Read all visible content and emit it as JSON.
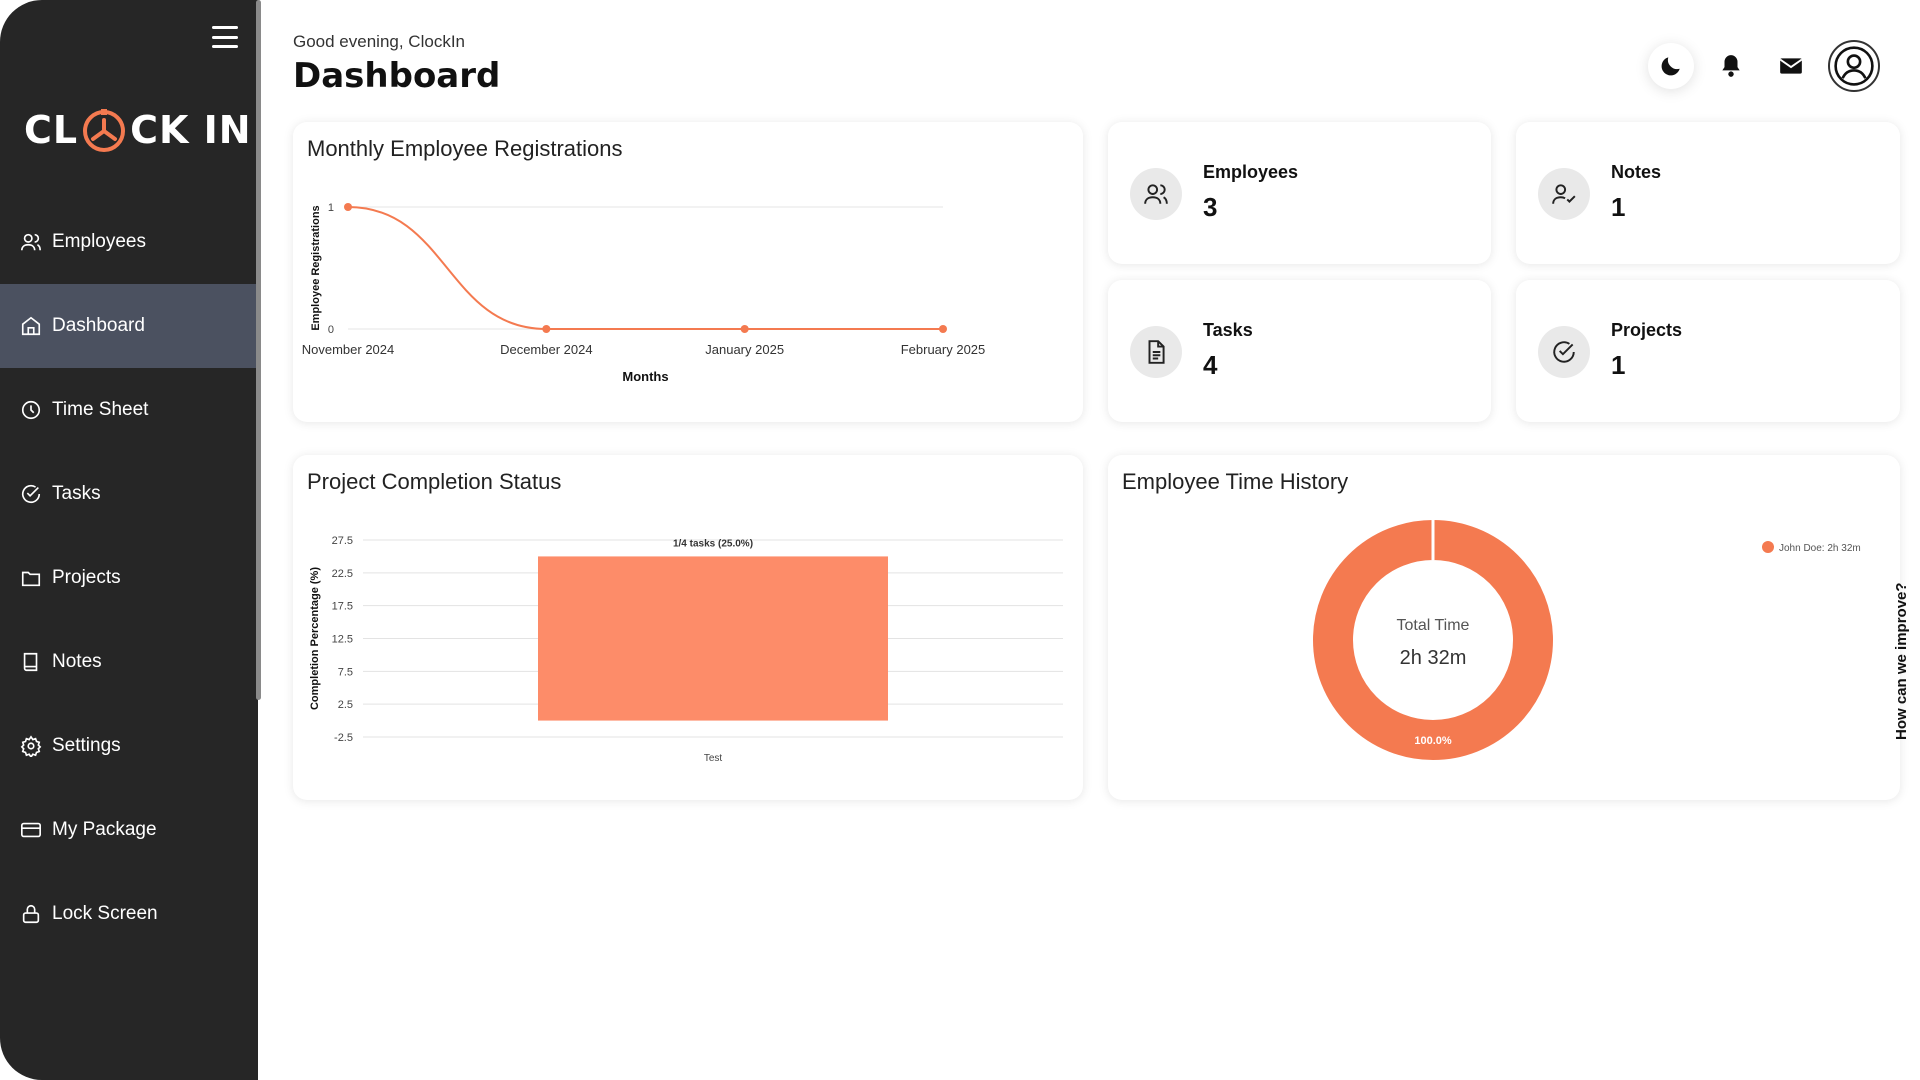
{
  "app": {
    "logo_left": "CL",
    "logo_right": "CK IN"
  },
  "header": {
    "greeting": "Good evening, ClockIn",
    "title": "Dashboard"
  },
  "sidebar": {
    "items": [
      {
        "label": "Employees",
        "icon": "users-icon"
      },
      {
        "label": "Dashboard",
        "icon": "home-icon",
        "active": true
      },
      {
        "label": "Time Sheet",
        "icon": "clock-icon"
      },
      {
        "label": "Tasks",
        "icon": "check-circle-icon"
      },
      {
        "label": "Projects",
        "icon": "folder-icon"
      },
      {
        "label": "Notes",
        "icon": "book-icon"
      },
      {
        "label": "Settings",
        "icon": "gear-icon"
      },
      {
        "label": "My Package",
        "icon": "card-icon"
      },
      {
        "label": "Lock Screen",
        "icon": "lock-icon"
      }
    ]
  },
  "stats": {
    "employees": {
      "label": "Employees",
      "value": "3"
    },
    "notes": {
      "label": "Notes",
      "value": "1"
    },
    "tasks": {
      "label": "Tasks",
      "value": "4"
    },
    "projects": {
      "label": "Projects",
      "value": "1"
    }
  },
  "colors": {
    "accent": "#f47a50",
    "bar": "#fd8c69",
    "sidebar": "#262626",
    "active": "#4b5160"
  },
  "feedback": {
    "label": "How can we improve?"
  },
  "chart_data": [
    {
      "type": "line",
      "title": "Monthly Employee Registrations",
      "categories": [
        "November 2024",
        "December 2024",
        "January 2025",
        "February 2025"
      ],
      "values": [
        1,
        0,
        0,
        0
      ],
      "xlabel": "Months",
      "ylabel": "Employee Registrations",
      "yticks": [
        "1",
        "0"
      ],
      "ylim": [
        0,
        1
      ]
    },
    {
      "type": "bar",
      "title": "Project Completion Status",
      "categories": [
        "Test"
      ],
      "values": [
        25
      ],
      "data_labels": [
        "1/4 tasks (25.0%)"
      ],
      "ylabel": "Completion Percentage (%)",
      "yticks": [
        "27.5",
        "22.5",
        "17.5",
        "12.5",
        "7.5",
        "2.5",
        "-2.5"
      ],
      "ylim": [
        -2.5,
        27.5
      ]
    },
    {
      "type": "pie",
      "title": "Employee Time History",
      "center_label": "Total Time",
      "center_value": "2h 32m",
      "slices": [
        {
          "name": "John Doe: 2h 32m",
          "value": 100.0,
          "label": "100.0%"
        }
      ]
    }
  ]
}
